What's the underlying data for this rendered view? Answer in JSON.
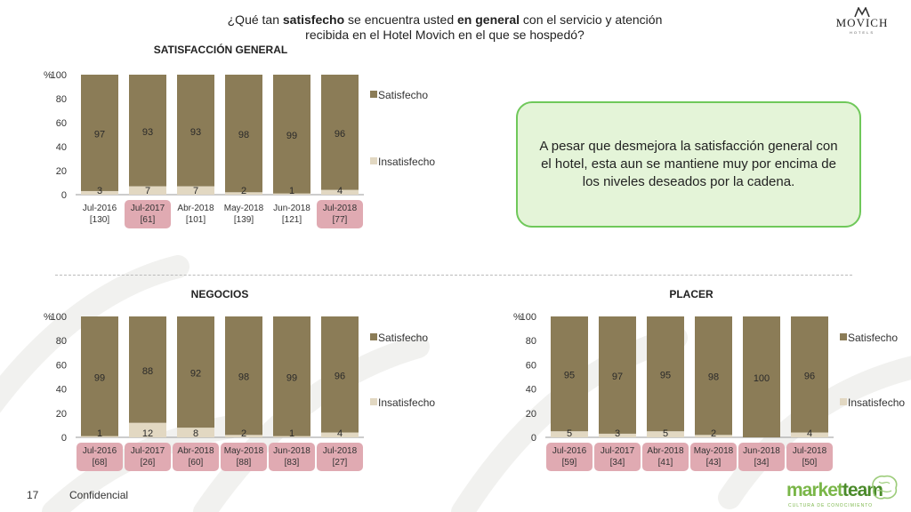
{
  "header": {
    "title_parts": [
      {
        "text": "¿Qué tan ",
        "bold": false
      },
      {
        "text": "satisfecho",
        "bold": true
      },
      {
        "text": " se encuentra usted ",
        "bold": false
      },
      {
        "text": "en general",
        "bold": true
      },
      {
        "text": " con el servicio y atención recibida en el Hotel Movich en el que se hospedó?",
        "bold": false
      }
    ]
  },
  "logo": {
    "brand": "MOVICH",
    "sub": "HOTELS"
  },
  "callout": {
    "text": "A pesar que desmejora la satisfacción general con el hotel, esta aun se mantiene muy por encima de los niveles deseados por la cadena."
  },
  "footer": {
    "page_number": "17",
    "confidential": "Confidencial"
  },
  "branding": {
    "word1": "market",
    "word2": "team",
    "tagline": "CULTURA DE CONOCIMIENTO"
  },
  "colors": {
    "satisfecho": "#8b7c57",
    "insatisfecho": "#e2d8c2",
    "highlight": "#e0aab2",
    "callout_border": "#6fc85a",
    "callout_fill": "#e4f4d8"
  },
  "chart_data": [
    {
      "type": "bar",
      "title": "SATISFACCIÓN GENERAL",
      "ylabel": "%",
      "ylim": [
        0,
        100
      ],
      "yticks": [
        "0",
        "20",
        "40",
        "60",
        "80",
        "100"
      ],
      "stacked": true,
      "categories": [
        "Jul-2016",
        "Jul-2017",
        "Abr-2018",
        "May-2018",
        "Jun-2018",
        "Jul-2018"
      ],
      "bases": [
        "[130]",
        "[61]",
        "[101]",
        "[139]",
        "[121]",
        "[77]"
      ],
      "highlighted": [
        false,
        true,
        false,
        false,
        false,
        true
      ],
      "series": [
        {
          "name": "Insatisfecho",
          "values": [
            3,
            7,
            7,
            2,
            1,
            4
          ]
        },
        {
          "name": "Satisfecho",
          "values": [
            97,
            93,
            93,
            98,
            99,
            96
          ]
        }
      ],
      "legend": [
        "Satisfecho",
        "Insatisfecho"
      ],
      "legend_position": "right"
    },
    {
      "type": "bar",
      "title": "NEGOCIOS",
      "ylabel": "%",
      "ylim": [
        0,
        100
      ],
      "yticks": [
        "0",
        "20",
        "40",
        "60",
        "80",
        "100"
      ],
      "stacked": true,
      "categories": [
        "Jul-2016",
        "Jul-2017",
        "Abr-2018",
        "May-2018",
        "Jun-2018",
        "Jul-2018"
      ],
      "bases": [
        "[68]",
        "[26]",
        "[60]",
        "[88]",
        "[83]",
        "[27]"
      ],
      "highlighted": [
        true,
        true,
        true,
        true,
        true,
        true
      ],
      "series": [
        {
          "name": "Insatisfecho",
          "values": [
            1,
            12,
            8,
            2,
            1,
            4
          ]
        },
        {
          "name": "Satisfecho",
          "values": [
            99,
            88,
            92,
            98,
            99,
            96
          ]
        }
      ],
      "legend": [
        "Satisfecho",
        "Insatisfecho"
      ],
      "legend_position": "right"
    },
    {
      "type": "bar",
      "title": "PLACER",
      "ylabel": "%",
      "ylim": [
        0,
        100
      ],
      "yticks": [
        "0",
        "20",
        "40",
        "60",
        "80",
        "100"
      ],
      "stacked": true,
      "categories": [
        "Jul-2016",
        "Jul-2017",
        "Abr-2018",
        "May-2018",
        "Jun-2018",
        "Jul-2018"
      ],
      "bases": [
        "[59]",
        "[34]",
        "[41]",
        "[43]",
        "[34]",
        "[50]"
      ],
      "highlighted": [
        true,
        true,
        true,
        true,
        true,
        true
      ],
      "series": [
        {
          "name": "Insatisfecho",
          "values": [
            5,
            3,
            5,
            2,
            0,
            4
          ]
        },
        {
          "name": "Satisfecho",
          "values": [
            95,
            97,
            95,
            98,
            100,
            96
          ]
        }
      ],
      "insatisfecho_labels": [
        "5",
        "3",
        "5",
        "2",
        "",
        "4"
      ],
      "legend": [
        "Satisfecho",
        "Insatisfecho"
      ],
      "legend_position": "right"
    }
  ]
}
